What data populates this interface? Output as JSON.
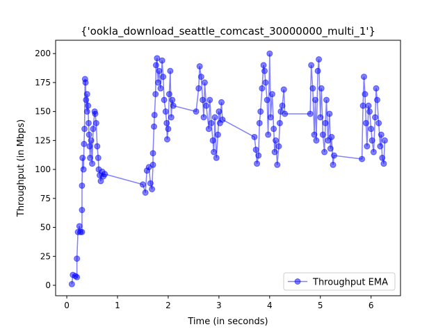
{
  "chart_data": {
    "type": "line",
    "title": "{'ookla_download_seattle_comcast_30000000_multi_1'}",
    "x_label": "Time (in seconds)",
    "y_label": "Throughput (in Mbps)",
    "x": [
      0.1,
      0.12,
      0.17,
      0.2,
      0.2,
      0.22,
      0.25,
      0.27,
      0.3,
      0.3,
      0.3,
      0.31,
      0.33,
      0.34,
      0.35,
      0.36,
      0.37,
      0.38,
      0.4,
      0.4,
      0.42,
      0.43,
      0.44,
      0.45,
      0.46,
      0.48,
      0.5,
      0.52,
      0.55,
      0.56,
      0.58,
      0.6,
      0.62,
      0.63,
      0.65,
      0.67,
      0.7,
      0.72,
      0.75,
      1.5,
      1.55,
      1.58,
      1.62,
      1.65,
      1.68,
      1.7,
      1.7,
      1.72,
      1.73,
      1.75,
      1.76,
      1.78,
      1.8,
      1.82,
      1.85,
      1.88,
      1.9,
      1.92,
      1.95,
      1.97,
      1.98,
      2.0,
      2.02,
      2.04,
      2.06,
      2.08,
      2.1,
      2.55,
      2.6,
      2.62,
      2.65,
      2.68,
      2.7,
      2.72,
      2.75,
      2.8,
      2.82,
      2.85,
      2.88,
      2.9,
      2.92,
      2.95,
      2.98,
      3.0,
      3.02,
      3.05,
      3.07,
      3.7,
      3.73,
      3.75,
      3.78,
      3.8,
      3.82,
      3.85,
      3.88,
      3.9,
      3.92,
      3.95,
      3.97,
      4.0,
      4.02,
      4.05,
      4.08,
      4.1,
      4.12,
      4.15,
      4.18,
      4.2,
      4.22,
      4.25,
      4.28,
      4.3,
      4.8,
      4.82,
      4.85,
      4.88,
      4.9,
      4.92,
      4.95,
      4.97,
      5.0,
      5.02,
      5.05,
      5.08,
      5.1,
      5.12,
      5.15,
      5.18,
      5.2,
      5.22,
      5.25,
      5.27,
      5.82,
      5.84,
      5.86,
      5.88,
      5.9,
      5.92,
      5.95,
      5.97,
      6.0,
      6.02,
      6.05,
      6.08,
      6.1,
      6.12,
      6.15,
      6.18,
      6.2,
      6.22,
      6.25,
      6.27
    ],
    "series": [
      {
        "name": "Throughput EMA",
        "color": "#0000ff",
        "values": [
          1,
          9,
          8,
          7,
          23,
          46,
          51,
          46,
          46,
          65,
          86,
          110,
          100,
          122,
          135,
          178,
          175,
          160,
          150,
          165,
          155,
          140,
          130,
          120,
          110,
          125,
          105,
          135,
          150,
          148,
          140,
          120,
          110,
          100,
          95,
          90,
          98,
          94,
          96,
          87,
          80,
          99,
          102,
          88,
          83,
          104,
          114,
          137,
          147,
          165,
          190,
          196,
          175,
          185,
          170,
          194,
          180,
          160,
          150,
          140,
          126,
          135,
          165,
          185,
          145,
          160,
          155,
          150,
          170,
          189,
          180,
          160,
          145,
          175,
          155,
          135,
          160,
          140,
          125,
          115,
          145,
          110,
          130,
          150,
          140,
          158,
          143,
          128,
          117,
          105,
          112,
          140,
          150,
          170,
          190,
          185,
          175,
          160,
          130,
          200,
          145,
          165,
          135,
          115,
          125,
          104,
          120,
          140,
          150,
          155,
          169,
          148,
          148,
          190,
          170,
          130,
          160,
          125,
          185,
          195,
          145,
          170,
          130,
          115,
          140,
          160,
          125,
          148,
          118,
          128,
          104,
          112,
          109,
          155,
          180,
          165,
          140,
          120,
          155,
          150,
          135,
          125,
          115,
          145,
          170,
          160,
          140,
          120,
          130,
          110,
          105,
          125
        ]
      }
    ],
    "xlim": [
      -0.22,
      6.58
    ],
    "ylim": [
      -9,
      211.5
    ],
    "xticks": [
      0,
      1,
      2,
      3,
      4,
      5,
      6
    ],
    "yticks": [
      0,
      25,
      50,
      75,
      100,
      125,
      150,
      175,
      200
    ],
    "legend": "lower right"
  }
}
